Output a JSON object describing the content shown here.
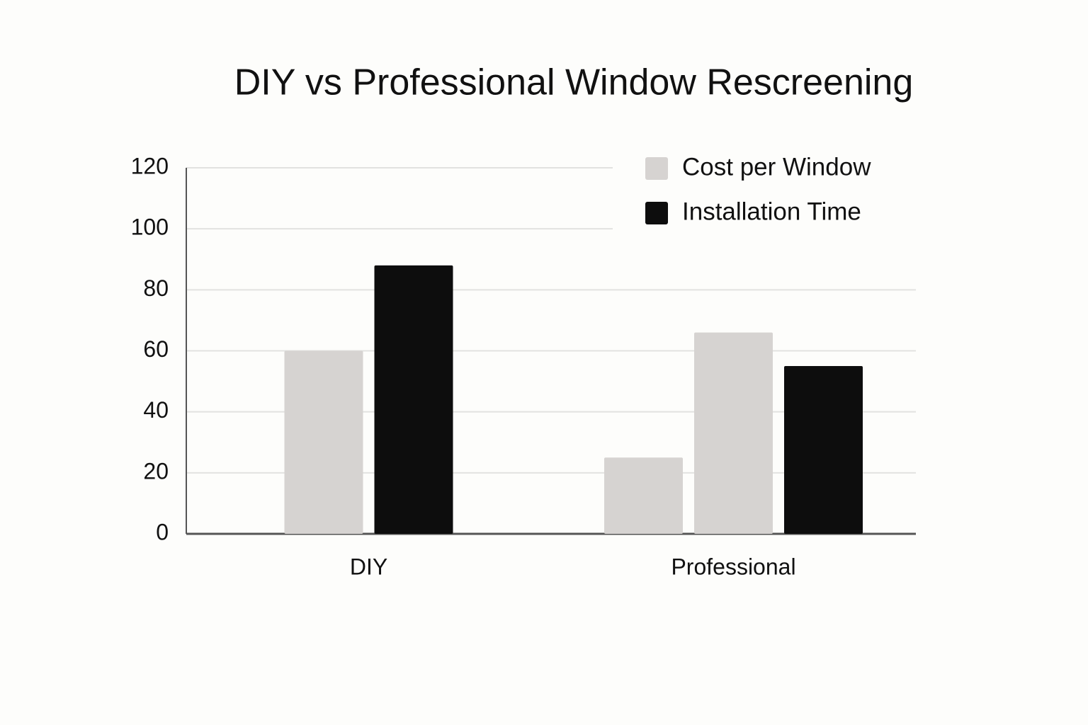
{
  "chart_data": {
    "type": "bar",
    "title": "DIY vs Professional Window Rescreening",
    "categories": [
      "DIY",
      "Professional"
    ],
    "series": [
      {
        "name": "Cost per Window",
        "color": "#d6d3d1",
        "values": [
          60,
          25
        ]
      },
      {
        "color": "#d6d3d1",
        "values": [
          null,
          66
        ]
      },
      {
        "name": "Installation Time",
        "color": "#0d0d0d",
        "values": [
          88,
          55
        ]
      }
    ],
    "ylim": [
      0,
      120
    ],
    "yticks": [
      0,
      20,
      40,
      60,
      80,
      100,
      120
    ],
    "grid": true,
    "legend": "top-right"
  }
}
